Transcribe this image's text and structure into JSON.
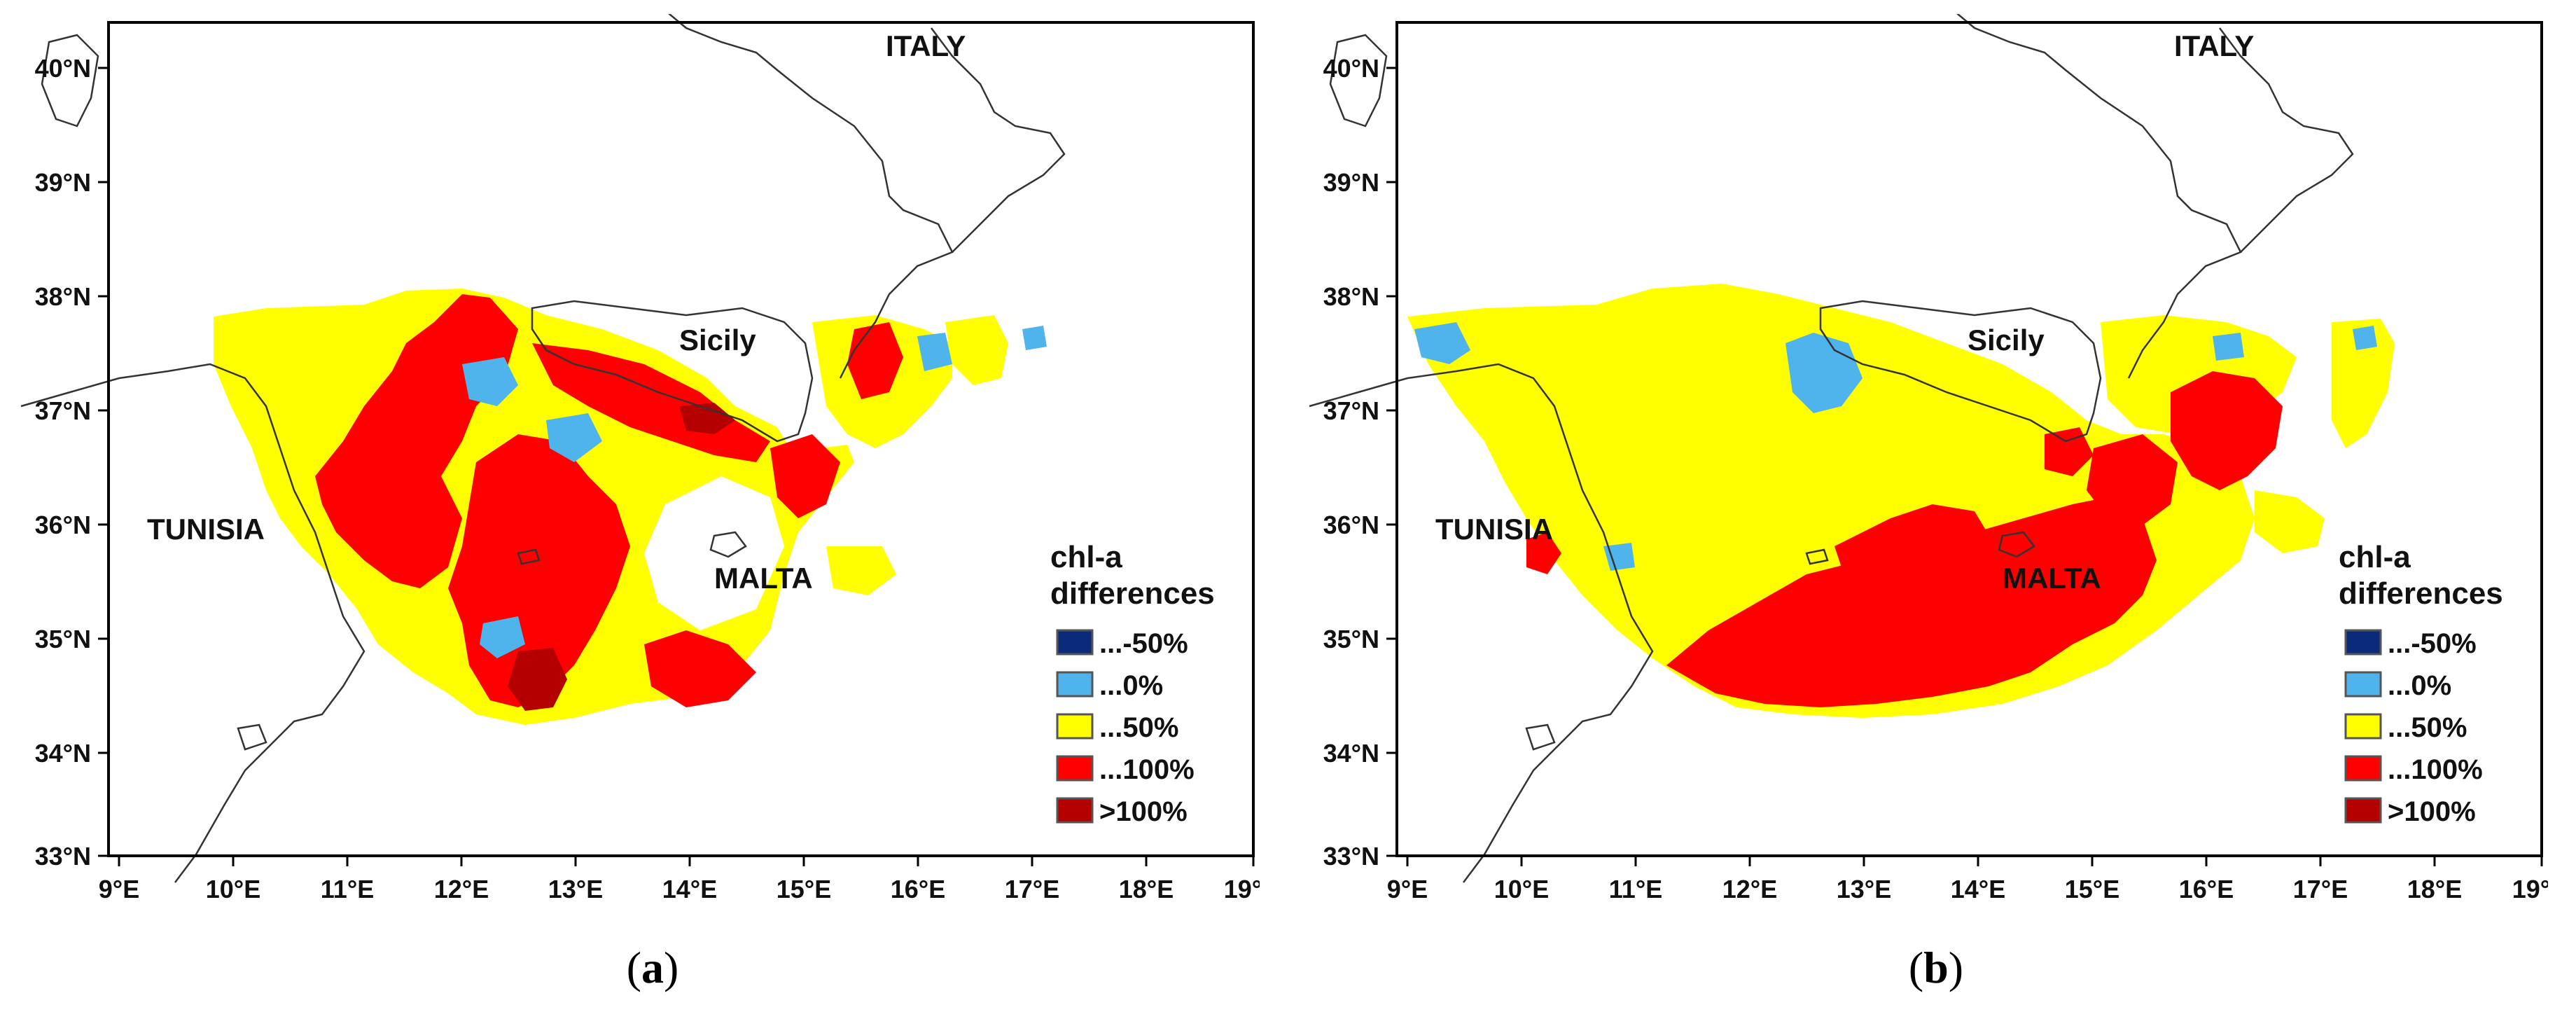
{
  "panels": [
    {
      "id": "a",
      "caption_open": "(",
      "caption_letter": "a",
      "caption_close": ")",
      "layer": "a"
    },
    {
      "id": "b",
      "caption_open": "(",
      "caption_letter": "b",
      "caption_close": ")",
      "layer": "b"
    }
  ],
  "lat_ticks": [
    "40°N",
    "39°N",
    "38°N",
    "37°N",
    "36°N",
    "35°N",
    "34°N",
    "33°N"
  ],
  "lon_ticks": [
    "9°E",
    "10°E",
    "11°E",
    "12°E",
    "13°E",
    "14°E",
    "15°E",
    "16°E",
    "17°E",
    "18°E",
    "19°"
  ],
  "places": {
    "italy": "ITALY",
    "sicily": "Sicily",
    "tunisia": "TUNISIA",
    "malta": "MALTA"
  },
  "legend": {
    "title_line1": "chl-a",
    "title_line2": "differences",
    "items": [
      {
        "label": "...-50%",
        "color": "#0b2a7a"
      },
      {
        "label": "...0%",
        "color": "#4fb3ec"
      },
      {
        "label": "...50%",
        "color": "#ffff00"
      },
      {
        "label": "...100%",
        "color": "#ff0000"
      },
      {
        "label": ">100%",
        "color": "#b40000"
      }
    ]
  },
  "colors": {
    "frame": "#000000",
    "coast": "#333333"
  }
}
